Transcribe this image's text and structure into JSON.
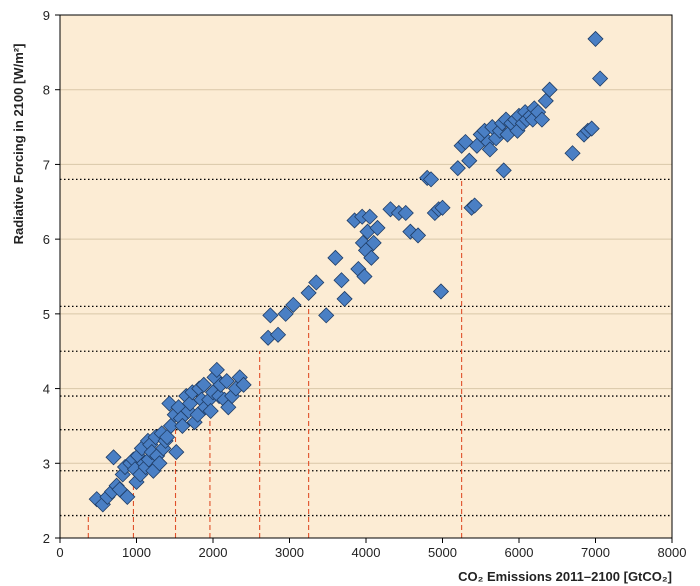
{
  "chart_data": {
    "type": "scatter",
    "xlabel": "CO₂ Emissions 2011–2100 [GtCO₂]",
    "ylabel": "Radiative Forcing in 2100 [W/m²]",
    "xlim": [
      0,
      8000
    ],
    "ylim": [
      2,
      9
    ],
    "xticks": [
      "0",
      "1000",
      "2000",
      "3000",
      "4000",
      "5000",
      "6000",
      "7000",
      "8000"
    ],
    "yticks": [
      "2",
      "3",
      "4",
      "5",
      "6",
      "7",
      "8",
      "9"
    ],
    "grid": "horizontal",
    "reference_lines": {
      "forcing_levels": [
        2.3,
        2.9,
        3.45,
        3.9,
        4.5,
        5.1,
        6.8
      ],
      "emission_levels": [
        {
          "x": 370,
          "y": 2.3
        },
        {
          "x": 960,
          "y": 2.9
        },
        {
          "x": 1510,
          "y": 3.45
        },
        {
          "x": 1960,
          "y": 3.9
        },
        {
          "x": 2610,
          "y": 4.5
        },
        {
          "x": 3250,
          "y": 5.1
        },
        {
          "x": 5250,
          "y": 6.8
        }
      ]
    },
    "series": [
      {
        "color": "#4a7fc4",
        "marker": "diamond",
        "points": [
          [
            480,
            2.52
          ],
          [
            560,
            2.45
          ],
          [
            620,
            2.55
          ],
          [
            680,
            2.62
          ],
          [
            700,
            3.08
          ],
          [
            740,
            2.7
          ],
          [
            780,
            2.65
          ],
          [
            820,
            2.85
          ],
          [
            850,
            2.95
          ],
          [
            880,
            2.55
          ],
          [
            920,
            3.0
          ],
          [
            960,
            3.05
          ],
          [
            980,
            2.92
          ],
          [
            1000,
            2.75
          ],
          [
            1020,
            3.1
          ],
          [
            1050,
            2.85
          ],
          [
            1070,
            3.2
          ],
          [
            1100,
            3.0
          ],
          [
            1120,
            2.95
          ],
          [
            1150,
            3.3
          ],
          [
            1160,
            3.05
          ],
          [
            1180,
            3.25
          ],
          [
            1200,
            3.15
          ],
          [
            1220,
            2.9
          ],
          [
            1250,
            3.35
          ],
          [
            1270,
            3.1
          ],
          [
            1300,
            3.0
          ],
          [
            1330,
            3.4
          ],
          [
            1350,
            3.2
          ],
          [
            1380,
            3.3
          ],
          [
            1400,
            3.35
          ],
          [
            1430,
            3.8
          ],
          [
            1450,
            3.5
          ],
          [
            1500,
            3.65
          ],
          [
            1520,
            3.15
          ],
          [
            1550,
            3.75
          ],
          [
            1580,
            3.6
          ],
          [
            1600,
            3.5
          ],
          [
            1650,
            3.9
          ],
          [
            1680,
            3.7
          ],
          [
            1700,
            3.8
          ],
          [
            1730,
            3.95
          ],
          [
            1760,
            3.55
          ],
          [
            1800,
            3.65
          ],
          [
            1820,
            4.0
          ],
          [
            1850,
            3.85
          ],
          [
            1880,
            4.05
          ],
          [
            1900,
            3.75
          ],
          [
            1950,
            3.85
          ],
          [
            1970,
            3.7
          ],
          [
            2000,
            3.95
          ],
          [
            2020,
            4.15
          ],
          [
            2050,
            4.25
          ],
          [
            2080,
            3.9
          ],
          [
            2100,
            4.05
          ],
          [
            2150,
            3.85
          ],
          [
            2180,
            4.1
          ],
          [
            2200,
            3.75
          ],
          [
            2250,
            3.9
          ],
          [
            2300,
            4.0
          ],
          [
            2350,
            4.15
          ],
          [
            2400,
            4.05
          ],
          [
            2720,
            4.68
          ],
          [
            2750,
            4.98
          ],
          [
            2850,
            4.72
          ],
          [
            2950,
            5.0
          ],
          [
            3050,
            5.12
          ],
          [
            3250,
            5.28
          ],
          [
            3350,
            5.42
          ],
          [
            3480,
            4.98
          ],
          [
            3600,
            5.75
          ],
          [
            3680,
            5.45
          ],
          [
            3720,
            5.2
          ],
          [
            3850,
            6.25
          ],
          [
            3900,
            5.6
          ],
          [
            3950,
            6.3
          ],
          [
            3960,
            5.95
          ],
          [
            3980,
            5.5
          ],
          [
            4000,
            5.85
          ],
          [
            4020,
            6.1
          ],
          [
            4050,
            6.3
          ],
          [
            4070,
            5.75
          ],
          [
            4100,
            5.95
          ],
          [
            4150,
            6.15
          ],
          [
            4320,
            6.4
          ],
          [
            4430,
            6.35
          ],
          [
            4520,
            6.35
          ],
          [
            4580,
            6.1
          ],
          [
            4680,
            6.05
          ],
          [
            4800,
            6.82
          ],
          [
            4850,
            6.8
          ],
          [
            4900,
            6.35
          ],
          [
            4950,
            6.4
          ],
          [
            4980,
            5.3
          ],
          [
            5000,
            6.42
          ],
          [
            5200,
            6.95
          ],
          [
            5250,
            7.25
          ],
          [
            5300,
            7.3
          ],
          [
            5350,
            7.05
          ],
          [
            5380,
            6.42
          ],
          [
            5420,
            6.45
          ],
          [
            5450,
            7.25
          ],
          [
            5500,
            7.4
          ],
          [
            5550,
            7.45
          ],
          [
            5600,
            7.3
          ],
          [
            5620,
            7.2
          ],
          [
            5650,
            7.5
          ],
          [
            5700,
            7.35
          ],
          [
            5750,
            7.45
          ],
          [
            5780,
            7.55
          ],
          [
            5800,
            6.92
          ],
          [
            5830,
            7.6
          ],
          [
            5850,
            7.4
          ],
          [
            5900,
            7.55
          ],
          [
            5950,
            7.6
          ],
          [
            5980,
            7.45
          ],
          [
            6000,
            7.65
          ],
          [
            6050,
            7.55
          ],
          [
            6080,
            7.7
          ],
          [
            6100,
            7.6
          ],
          [
            6150,
            7.65
          ],
          [
            6180,
            7.6
          ],
          [
            6200,
            7.75
          ],
          [
            6250,
            7.7
          ],
          [
            6300,
            7.6
          ],
          [
            6350,
            7.85
          ],
          [
            6400,
            8.0
          ],
          [
            6700,
            7.15
          ],
          [
            6850,
            7.4
          ],
          [
            6900,
            7.45
          ],
          [
            6950,
            7.48
          ],
          [
            7000,
            8.68
          ],
          [
            7060,
            8.15
          ]
        ]
      }
    ]
  }
}
